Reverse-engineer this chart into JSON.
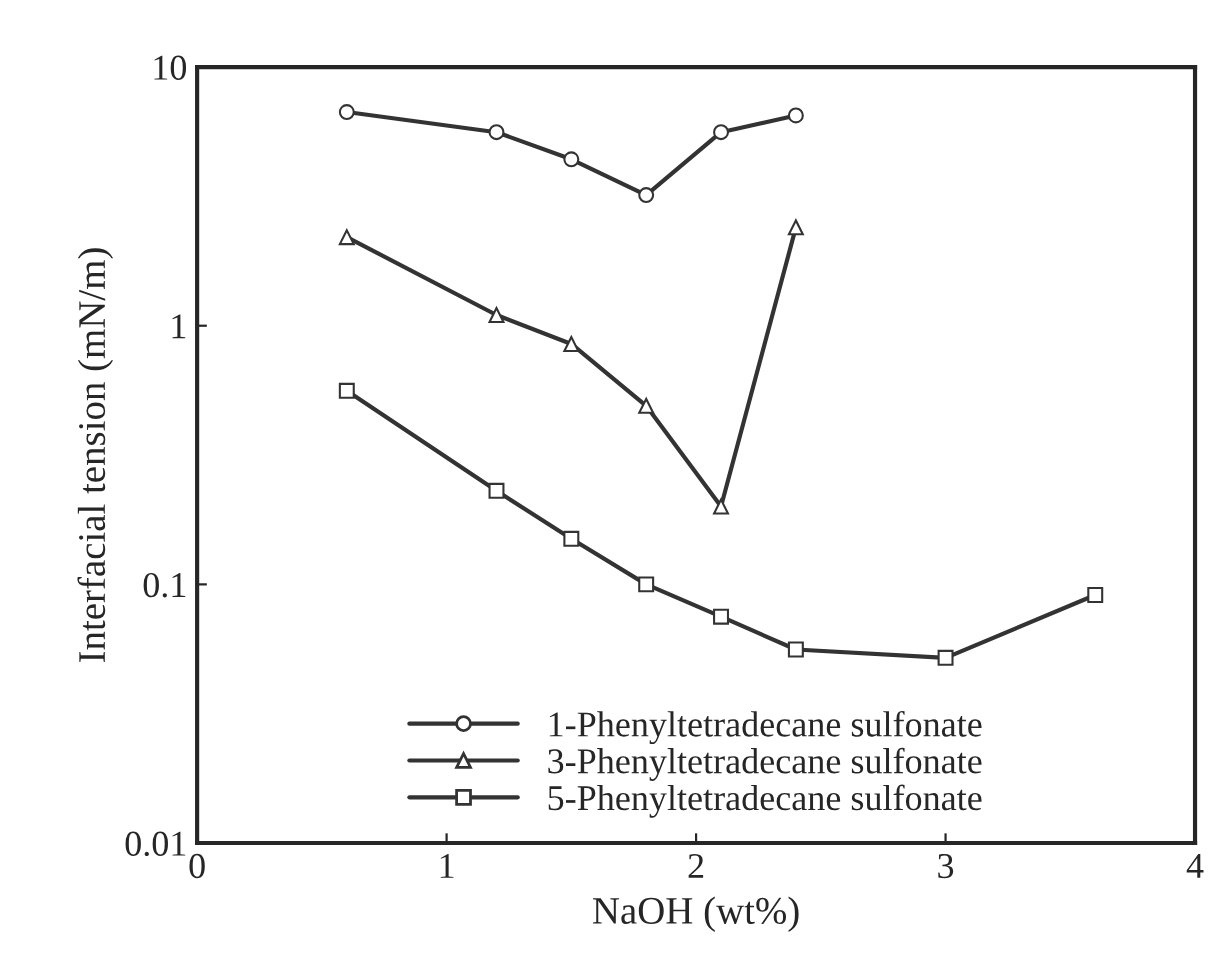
{
  "chart_data": {
    "type": "line",
    "xlabel": "NaOH (wt%)",
    "ylabel": "Interfacial tension (mN/m)",
    "log": "y",
    "xlim": [
      0,
      4
    ],
    "xticks": [
      0,
      1,
      2,
      3,
      4
    ],
    "ylim": [
      0.01,
      10
    ],
    "yticks": [
      0.01,
      0.1,
      1,
      10
    ],
    "grid": false,
    "legend": "bottom",
    "line_style": "solid",
    "series": [
      {
        "name": "1-Phenyltetradecane sulfonate",
        "color": "#333333",
        "marker": "circle",
        "x": [
          0.6,
          1.2,
          1.5,
          1.8,
          2.1,
          2.4
        ],
        "values": [
          6.7,
          5.6,
          4.4,
          3.2,
          5.6,
          6.5
        ]
      },
      {
        "name": "3-Phenyltetradecane sulfonate",
        "color": "#333333",
        "marker": "triangle",
        "x": [
          0.6,
          1.2,
          1.5,
          1.8,
          2.1,
          2.4
        ],
        "values": [
          2.2,
          1.1,
          0.85,
          0.49,
          0.2,
          2.4
        ]
      },
      {
        "name": "5-Phenyltetradecane sulfonate",
        "color": "#333333",
        "marker": "square",
        "x": [
          0.6,
          1.2,
          1.5,
          1.8,
          2.1,
          2.4,
          3.0,
          3.6
        ],
        "values": [
          0.56,
          0.23,
          0.15,
          0.1,
          0.075,
          0.056,
          0.052,
          0.091
        ]
      }
    ]
  }
}
